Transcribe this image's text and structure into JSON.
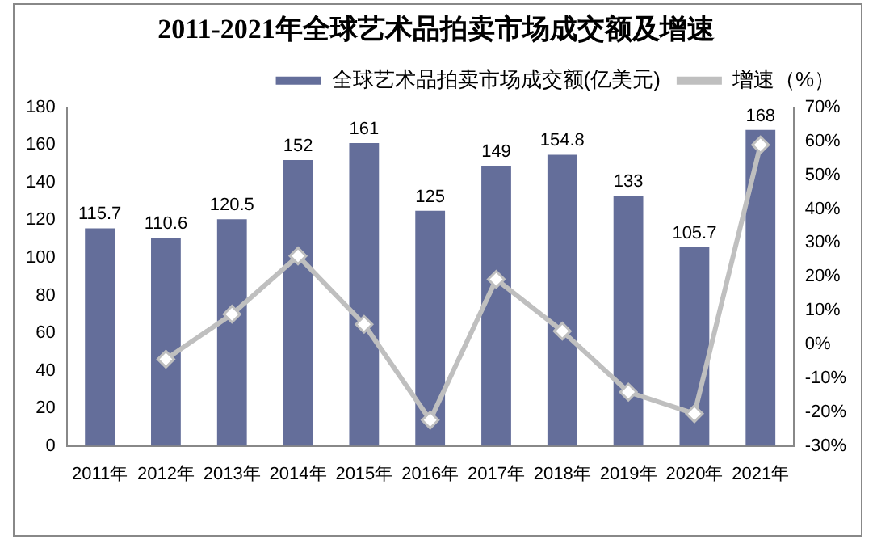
{
  "chart_data": {
    "type": "bar",
    "title": "2011-2021年全球艺术品拍卖市场成交额及增速",
    "categories": [
      "2011年",
      "2012年",
      "2013年",
      "2014年",
      "2015年",
      "2016年",
      "2017年",
      "2018年",
      "2019年",
      "2020年",
      "2021年"
    ],
    "series": [
      {
        "name": "全球艺术品拍卖市场成交额(亿美元)",
        "color": "#646e9a",
        "values": [
          115.7,
          110.6,
          120.5,
          152,
          161,
          125,
          149,
          154.8,
          133,
          105.7,
          168
        ],
        "value_labels": [
          "115.7",
          "110.6",
          "120.5",
          "152",
          "161",
          "125",
          "149",
          "154.8",
          "133",
          "105.7",
          "168"
        ]
      },
      {
        "name": "增速（%）",
        "type": "line",
        "axis": "y2",
        "color": "#bfbfbf",
        "marker": "diamond",
        "values": [
          null,
          -4.4,
          8.9,
          26.1,
          5.9,
          -22.4,
          19.2,
          3.9,
          -14.1,
          -20.5,
          58.9
        ]
      }
    ],
    "ylim": [
      0,
      180
    ],
    "yticks": [
      0,
      20,
      40,
      60,
      80,
      100,
      120,
      140,
      160,
      180
    ],
    "y2lim": [
      -30,
      70
    ],
    "y2ticks": [
      {
        "value": -30,
        "label": "-30%"
      },
      {
        "value": -20,
        "label": "-20%"
      },
      {
        "value": -10,
        "label": "-10%"
      },
      {
        "value": 0,
        "label": "0%"
      },
      {
        "value": 10,
        "label": "10%"
      },
      {
        "value": 20,
        "label": "20%"
      },
      {
        "value": 30,
        "label": "30%"
      },
      {
        "value": 40,
        "label": "40%"
      },
      {
        "value": 50,
        "label": "50%"
      },
      {
        "value": 60,
        "label": "60%"
      },
      {
        "value": 70,
        "label": "70%"
      }
    ],
    "legend": "top",
    "grid": false
  }
}
